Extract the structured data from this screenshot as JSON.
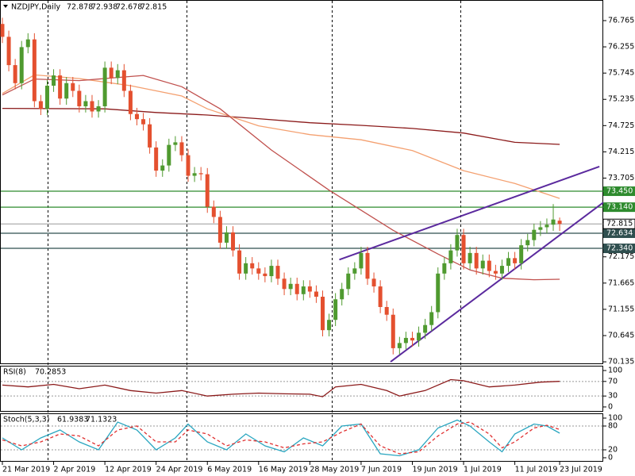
{
  "chart_data": [
    {
      "type": "candlestick",
      "title": "NZDJPY,Daily",
      "categories": [
        "21 Mar 2019",
        null,
        null,
        null,
        null,
        null,
        null,
        null,
        "2 Apr 2019",
        null,
        null,
        null,
        null,
        null,
        null,
        null,
        "12 Apr 2019",
        null,
        null,
        null,
        null,
        null,
        null,
        null,
        "24 Apr 2019",
        null,
        null,
        null,
        null,
        null,
        null,
        null,
        "6 May 2019",
        null,
        null,
        null,
        null,
        null,
        null,
        null,
        "16 May 2019",
        null,
        null,
        null,
        null,
        null,
        null,
        null,
        "28 May 2019",
        null,
        null,
        null,
        null,
        null,
        null,
        null,
        "7 Jun 2019",
        null,
        null,
        null,
        null,
        null,
        null,
        null,
        "19 Jun 2019",
        null,
        null,
        null,
        null,
        null,
        null,
        null,
        "1 Jul 2019",
        null,
        null,
        null,
        null,
        null,
        null,
        null,
        "11 Jul 2019",
        null,
        null,
        null,
        null,
        null,
        null,
        "23 Jul 2019"
      ],
      "open": [
        76.7,
        76.45,
        75.9,
        75.55,
        76.25,
        76.4,
        75.2,
        75.05,
        75.5,
        75.7,
        75.25,
        75.55,
        75.4,
        75.1,
        75.2,
        75.0,
        75.1,
        75.85,
        75.65,
        75.8,
        75.4,
        74.95,
        74.85,
        74.75,
        74.3,
        73.85,
        73.95,
        74.35,
        74.4,
        74.15,
        73.75,
        73.8,
        73.78,
        73.15,
        72.95,
        72.45,
        72.65,
        72.3,
        71.85,
        72.05,
        71.95,
        71.85,
        71.8,
        72.0,
        71.75,
        71.55,
        71.65,
        71.45,
        71.6,
        71.5,
        71.4,
        70.75,
        70.95,
        71.35,
        71.55,
        71.85,
        71.95,
        72.25,
        71.75,
        71.6,
        71.2,
        71.05,
        70.4,
        70.5,
        70.6,
        70.55,
        70.7,
        70.85,
        71.1,
        71.85,
        72.05,
        72.3,
        72.6,
        72.05,
        72.25,
        71.95,
        72.1,
        71.9,
        71.85,
        72.0,
        72.15,
        72.05,
        72.4,
        72.5,
        72.7,
        72.75,
        72.8,
        72.878
      ],
      "high": [
        76.82,
        76.57,
        76.02,
        76.37,
        76.52,
        76.52,
        75.32,
        75.62,
        75.82,
        75.82,
        75.67,
        75.67,
        75.52,
        75.32,
        75.32,
        75.22,
        75.97,
        75.97,
        75.92,
        75.92,
        75.52,
        75.07,
        74.97,
        74.87,
        74.42,
        74.07,
        74.47,
        74.52,
        74.52,
        74.27,
        73.92,
        73.92,
        73.9,
        73.27,
        73.07,
        72.77,
        72.77,
        72.42,
        72.17,
        72.17,
        72.07,
        71.97,
        72.12,
        72.12,
        71.87,
        71.77,
        71.77,
        71.72,
        71.72,
        71.62,
        71.52,
        71.07,
        71.47,
        71.67,
        71.97,
        72.07,
        72.37,
        72.37,
        71.87,
        71.72,
        71.32,
        71.17,
        70.62,
        70.72,
        70.72,
        70.82,
        70.97,
        71.22,
        71.97,
        72.17,
        72.42,
        72.72,
        72.72,
        72.37,
        72.37,
        72.22,
        72.22,
        72.02,
        72.12,
        72.27,
        72.27,
        72.52,
        72.62,
        72.82,
        72.87,
        72.92,
        73.2,
        72.938
      ],
      "low": [
        76.33,
        75.78,
        75.43,
        75.43,
        76.13,
        75.08,
        74.93,
        74.93,
        75.38,
        75.13,
        75.13,
        75.28,
        74.98,
        74.98,
        74.88,
        74.88,
        74.98,
        75.53,
        75.53,
        75.28,
        74.83,
        74.73,
        74.63,
        74.18,
        73.73,
        73.73,
        73.83,
        74.23,
        74.03,
        73.63,
        73.63,
        73.66,
        73.03,
        72.83,
        72.33,
        72.33,
        72.18,
        71.73,
        71.73,
        71.83,
        71.73,
        71.68,
        71.68,
        71.63,
        71.43,
        71.43,
        71.33,
        71.33,
        71.38,
        71.28,
        70.63,
        70.63,
        70.83,
        71.23,
        71.43,
        71.73,
        71.83,
        71.63,
        71.48,
        71.08,
        70.93,
        70.28,
        70.28,
        70.38,
        70.43,
        70.43,
        70.58,
        70.73,
        70.98,
        71.73,
        71.93,
        72.18,
        71.93,
        71.93,
        71.83,
        71.83,
        71.78,
        71.73,
        71.73,
        71.88,
        71.93,
        71.93,
        72.28,
        72.38,
        72.58,
        72.63,
        72.68,
        72.678
      ],
      "close": [
        76.45,
        75.9,
        75.55,
        76.25,
        76.4,
        75.2,
        75.05,
        75.5,
        75.7,
        75.25,
        75.55,
        75.4,
        75.1,
        75.2,
        75.0,
        75.1,
        75.85,
        75.65,
        75.8,
        75.4,
        74.95,
        74.85,
        74.75,
        74.3,
        73.85,
        73.95,
        74.35,
        74.4,
        74.15,
        73.75,
        73.8,
        73.78,
        73.15,
        72.95,
        72.45,
        72.65,
        72.3,
        71.85,
        72.05,
        71.95,
        71.85,
        71.8,
        72.0,
        71.75,
        71.55,
        71.65,
        71.45,
        71.6,
        71.5,
        71.4,
        70.75,
        70.95,
        71.35,
        71.55,
        71.85,
        71.95,
        72.25,
        71.75,
        71.6,
        71.2,
        71.05,
        70.4,
        70.5,
        70.6,
        70.55,
        70.7,
        70.85,
        71.1,
        71.85,
        72.05,
        72.3,
        72.6,
        72.05,
        72.25,
        71.95,
        72.1,
        71.9,
        71.85,
        72.0,
        72.15,
        72.05,
        72.4,
        72.5,
        72.7,
        72.75,
        72.8,
        72.9,
        72.815
      ],
      "up_color": "#4f9a2f",
      "down_color": "#e4502f",
      "ylim": [
        70.09,
        77.15
      ],
      "yticks": [
        76.765,
        76.255,
        75.745,
        75.235,
        74.725,
        74.215,
        73.705,
        72.175,
        71.665,
        71.155,
        70.645,
        70.135
      ],
      "levels": [
        {
          "value": 73.45,
          "label": "73.450",
          "color": "#2e8b2e"
        },
        {
          "value": 73.14,
          "label": "73.140",
          "color": "#2e8b2e"
        },
        {
          "value": 72.634,
          "label": "72.634",
          "color": "#2f4f4f"
        },
        {
          "value": 72.34,
          "label": "72.340",
          "color": "#2f4f4f"
        }
      ],
      "price_color": "#9a9a9a",
      "lines": [
        {
          "color": "#8b1a1a",
          "x": [
            0,
            16,
            24,
            32,
            40,
            48,
            56,
            64,
            72,
            80,
            87
          ],
          "values": [
            75.06,
            75.05,
            74.98,
            74.93,
            74.86,
            74.78,
            74.73,
            74.67,
            74.58,
            74.4,
            74.36
          ]
        },
        {
          "color": "#f4a070",
          "x": [
            0,
            5,
            12,
            20,
            28,
            32,
            40,
            48,
            56,
            64,
            72,
            80,
            87
          ],
          "values": [
            75.35,
            75.71,
            75.64,
            75.5,
            75.3,
            75.05,
            74.72,
            74.55,
            74.45,
            74.24,
            73.85,
            73.6,
            73.31
          ]
        },
        {
          "color": "#c0504d",
          "x": [
            0,
            5,
            12,
            22,
            28,
            34,
            42,
            51,
            61,
            68,
            73,
            78,
            83,
            87
          ],
          "values": [
            75.32,
            75.63,
            75.6,
            75.7,
            75.48,
            75.05,
            74.25,
            73.47,
            72.69,
            72.23,
            71.92,
            71.76,
            71.73,
            71.74
          ]
        }
      ],
      "trendlines": [
        {
          "color": "#5b2a9e",
          "x": [
            52.6,
            93.2
          ],
          "values": [
            72.12,
            73.93
          ]
        },
        {
          "color": "#5b2a9e",
          "x": [
            60.6,
            93.8
          ],
          "values": [
            70.135,
            73.23
          ]
        }
      ]
    },
    {
      "type": "line",
      "title": "RSI(8)",
      "ylim": [
        -11,
        111
      ],
      "yticks": [
        100,
        70,
        30,
        0
      ],
      "series": [
        {
          "color": "#8b1a1a",
          "x": [
            0,
            4,
            8,
            12,
            16,
            20,
            24,
            28,
            32,
            36,
            40,
            44,
            48,
            50,
            52,
            56,
            60,
            62,
            66,
            70,
            72,
            76,
            80,
            84,
            87
          ],
          "values": [
            60,
            55,
            62,
            50,
            60,
            45,
            38,
            45,
            30,
            35,
            38,
            36,
            35,
            28,
            55,
            62,
            45,
            30,
            45,
            75,
            72,
            55,
            60,
            68,
            70.2853
          ]
        }
      ]
    },
    {
      "type": "line",
      "title": "Stoch(5,3,3)",
      "ylim": [
        -10,
        110
      ],
      "yticks": [
        100,
        80,
        20,
        0
      ],
      "series": [
        {
          "color": "#2aa6c0",
          "x": [
            0,
            3,
            6,
            9,
            12,
            15,
            18,
            21,
            24,
            27,
            29,
            32,
            35,
            38,
            41,
            44,
            47,
            50,
            53,
            56,
            59,
            62,
            65,
            68,
            71,
            73,
            76,
            78,
            80,
            83,
            85,
            87
          ],
          "values": [
            50,
            20,
            50,
            70,
            40,
            20,
            90,
            70,
            20,
            50,
            85,
            40,
            20,
            60,
            30,
            15,
            50,
            30,
            80,
            85,
            10,
            5,
            20,
            75,
            95,
            80,
            40,
            15,
            60,
            85,
            80,
            61.9383
          ]
        },
        {
          "color": "#e03030",
          "dash": true,
          "x": [
            0,
            3,
            6,
            9,
            12,
            15,
            18,
            21,
            24,
            27,
            29,
            32,
            35,
            38,
            41,
            44,
            47,
            50,
            53,
            56,
            59,
            62,
            65,
            68,
            71,
            73,
            76,
            78,
            80,
            83,
            85,
            87
          ],
          "values": [
            45,
            30,
            40,
            60,
            55,
            30,
            70,
            80,
            40,
            40,
            70,
            60,
            30,
            45,
            40,
            25,
            35,
            40,
            65,
            85,
            30,
            10,
            15,
            55,
            85,
            90,
            60,
            25,
            40,
            75,
            82,
            71.1323
          ]
        }
      ]
    }
  ]
}
